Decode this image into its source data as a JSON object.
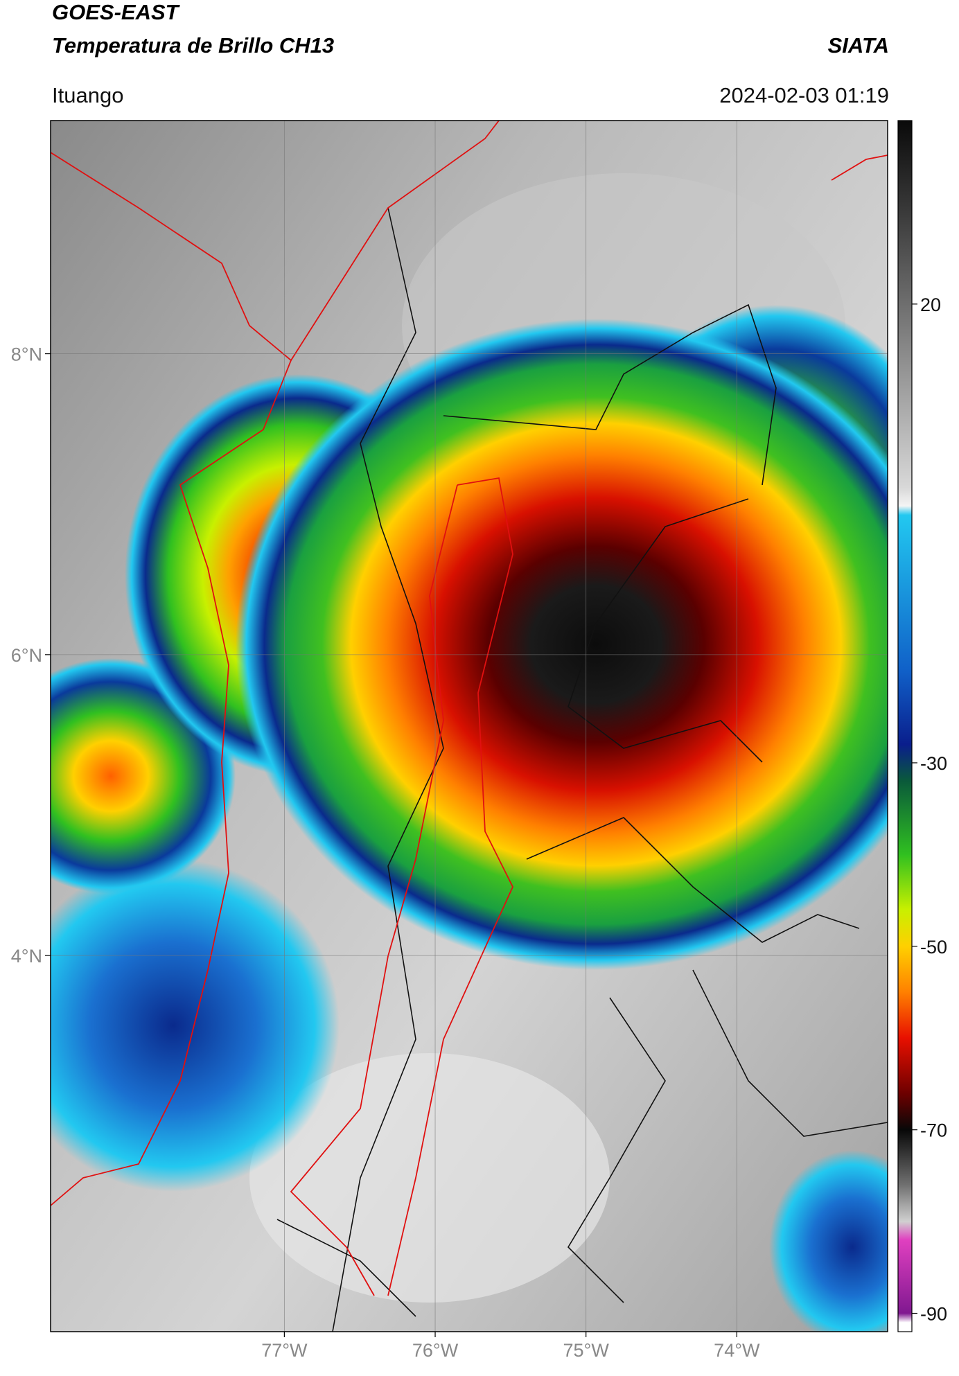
{
  "header": {
    "title_line1": "GOES-EAST",
    "title_line2": "Temperatura de Brillo CH13",
    "agency": "SIATA",
    "location": "Ituango",
    "timestamp": "2024-02-03 01:19"
  },
  "map": {
    "xlim": [
      -78.55,
      -73.0
    ],
    "ylim": [
      1.5,
      9.55
    ],
    "xticks": [
      {
        "value": -77,
        "label": "77°W"
      },
      {
        "value": -76,
        "label": "76°W"
      },
      {
        "value": -75,
        "label": "75°W"
      },
      {
        "value": -74,
        "label": "74°W"
      }
    ],
    "yticks": [
      {
        "value": 8,
        "label": "8°N"
      },
      {
        "value": 6,
        "label": "6°N"
      },
      {
        "value": 4,
        "label": "4°N"
      }
    ]
  },
  "colorbar": {
    "clim": [
      -92,
      40
    ],
    "ticks": [
      20,
      -30,
      -50,
      -70,
      -90
    ],
    "stops": [
      {
        "value": 40,
        "color": "#0a0a0a"
      },
      {
        "value": 30,
        "color": "#3a3a3a"
      },
      {
        "value": 20,
        "color": "#6e6e6e"
      },
      {
        "value": 0,
        "color": "#d8d8d8"
      },
      {
        "value": -2,
        "color": "#f4f4f4"
      },
      {
        "value": -3,
        "color": "#22c8f0"
      },
      {
        "value": -20,
        "color": "#1060c8"
      },
      {
        "value": -28,
        "color": "#0a1e8c"
      },
      {
        "value": -32,
        "color": "#0a5a3a"
      },
      {
        "value": -40,
        "color": "#30c020"
      },
      {
        "value": -46,
        "color": "#c8f000"
      },
      {
        "value": -50,
        "color": "#ffd000"
      },
      {
        "value": -55,
        "color": "#ff8000"
      },
      {
        "value": -60,
        "color": "#e81000"
      },
      {
        "value": -66,
        "color": "#6e0000"
      },
      {
        "value": -70,
        "color": "#080808"
      },
      {
        "value": -76,
        "color": "#707070"
      },
      {
        "value": -80,
        "color": "#d0d0d0"
      },
      {
        "value": -82,
        "color": "#e040c0"
      },
      {
        "value": -90,
        "color": "#801890"
      },
      {
        "value": -91,
        "color": "#ffffff"
      }
    ]
  }
}
